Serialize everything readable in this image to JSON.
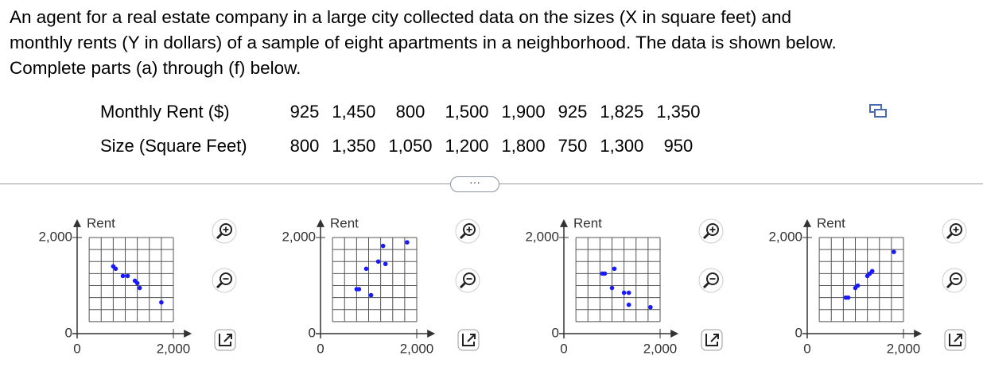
{
  "question": [
    "An agent for a real estate company in a large city collected data on the sizes (X in square feet) and",
    "monthly rents (Y in dollars) of a sample of eight apartments in a neighborhood. The data is shown below.",
    "Complete parts (a) through (f) below."
  ],
  "table": {
    "rows": [
      [
        "Monthly Rent ($)",
        "925",
        "1,450",
        "800",
        "1,500",
        "1,900",
        "925",
        "1,825",
        "1,350"
      ],
      [
        "Size (Square Feet)",
        "800",
        "1,350",
        "1,050",
        "1,200",
        "1,800",
        "750",
        "1,300",
        "950"
      ]
    ]
  },
  "chart_data": [
    {
      "type": "scatter",
      "ylabel": "Rent",
      "color": "#1a1aff",
      "x": [
        750,
        800,
        950,
        1050,
        1200,
        1250,
        1300,
        1750
      ],
      "values": [
        1400,
        1350,
        1200,
        1200,
        1100,
        1050,
        950,
        650
      ],
      "xlim": [
        0,
        2350
      ],
      "ylim": [
        0,
        2350
      ],
      "xticks": [
        0,
        {
          "value": 2000,
          "label": "2,000"
        }
      ],
      "yticks": [
        0,
        {
          "value": 2000,
          "label": "2,000"
        }
      ],
      "grid": true
    },
    {
      "type": "scatter",
      "ylabel": "Rent",
      "color": "#1a1aff",
      "x": [
        800,
        1350,
        1050,
        1200,
        1800,
        750,
        1300,
        950
      ],
      "values": [
        925,
        1450,
        800,
        1500,
        1900,
        925,
        1825,
        1350
      ],
      "xlim": [
        0,
        2350
      ],
      "ylim": [
        0,
        2350
      ],
      "xticks": [
        0,
        {
          "value": 2000,
          "label": "2,000"
        }
      ],
      "yticks": [
        0,
        {
          "value": 2000,
          "label": "2,000"
        }
      ],
      "grid": true
    },
    {
      "type": "scatter",
      "ylabel": "Rent",
      "color": "#1a1aff",
      "x": [
        800,
        850,
        1050,
        1000,
        1250,
        1350,
        1350,
        1800
      ],
      "values": [
        1250,
        1250,
        1350,
        950,
        850,
        850,
        600,
        550
      ],
      "xlim": [
        0,
        2350
      ],
      "ylim": [
        0,
        2350
      ],
      "xticks": [
        0,
        {
          "value": 2000,
          "label": "2,000"
        }
      ],
      "yticks": [
        0,
        {
          "value": 2000,
          "label": "2,000"
        }
      ],
      "grid": true
    },
    {
      "type": "scatter",
      "ylabel": "Rent",
      "color": "#1a1aff",
      "x": [
        800,
        850,
        1000,
        1050,
        1250,
        1300,
        1350,
        1800
      ],
      "values": [
        750,
        750,
        950,
        1000,
        1200,
        1250,
        1300,
        1700
      ],
      "xlim": [
        0,
        2350
      ],
      "ylim": [
        0,
        2350
      ],
      "xticks": [
        0,
        {
          "value": 2000,
          "label": "2,000"
        }
      ],
      "yticks": [
        0,
        {
          "value": 2000,
          "label": "2,000"
        }
      ],
      "grid": true
    }
  ]
}
